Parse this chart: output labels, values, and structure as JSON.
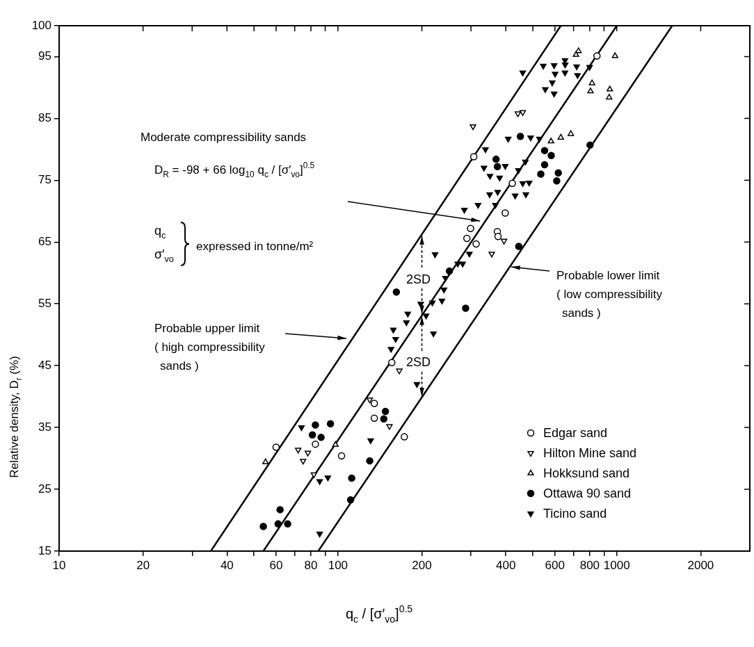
{
  "chart_data": {
    "type": "scatter",
    "xlabel": "q$_{c}$ / [σ′$_{vo}$]$^{0.5}$",
    "ylabel": "Relative density, D$_{r}$ (%)",
    "log": "x",
    "grid": false,
    "legend": "bottom right",
    "xlim": [
      10,
      3000
    ],
    "ylim": [
      15,
      100
    ],
    "xticks": [
      10,
      20,
      {
        "value": 30,
        "label": null
      },
      40,
      {
        "value": 50,
        "label": null
      },
      60,
      {
        "value": 70,
        "label": null
      },
      80,
      {
        "value": 90,
        "label": null
      },
      100,
      200,
      {
        "value": 300,
        "label": null
      },
      400,
      {
        "value": 500,
        "label": null
      },
      600,
      {
        "value": 700,
        "label": null
      },
      800,
      {
        "value": 900,
        "label": null
      },
      1000,
      2000
    ],
    "yticks": [
      15,
      25,
      35,
      45,
      55,
      65,
      75,
      85,
      95,
      100
    ],
    "annotations": [
      "Moderate compressibility sands",
      "D$_{R}$ = -98 + 66 log$_{10}$ q$_{c}$ / [σ′$_{vo}$]$^{0.5}$",
      "q$_{c}$",
      "σ′$_{vo}$",
      "expressed in tonne/m²",
      {
        "text": "2SD",
        "x": 200,
        "y": 66
      },
      {
        "text": "2SD",
        "x": 200,
        "y": 40
      },
      "Probable upper limit\n( high compressibility\nsands )",
      "Probable lower limit\n( low compressibility\nsands )"
    ],
    "series": [
      {
        "type": "line",
        "color": "#000000",
        "line_style": "solid",
        "x": [
          35,
          630
        ],
        "values": [
          15,
          100
        ]
      },
      {
        "type": "line",
        "color": "#000000",
        "line_style": "solid",
        "x": [
          54,
          1000
        ],
        "values": [
          15,
          100
        ]
      },
      {
        "type": "line",
        "color": "#000000",
        "line_style": "solid",
        "x": [
          85,
          1580
        ],
        "values": [
          15,
          100
        ]
      },
      {
        "name": "Edgar sand",
        "color": "#000000",
        "marker": "circle-open",
        "x": [
          60,
          83,
          103,
          135,
          135,
          173,
          156,
          290,
          299,
          313,
          373,
          375,
          398,
          422,
          307,
          849
        ],
        "values": [
          31.8,
          32.3,
          30.4,
          38.9,
          36.5,
          33.5,
          45.5,
          65.6,
          67.2,
          64.7,
          66.7,
          65.9,
          69.7,
          74.5,
          78.8,
          95.1
        ]
      },
      {
        "name": "Hilton Mine sand",
        "color": "#000000",
        "marker": "triangle-down-open",
        "x": [
          72,
          78,
          75,
          82,
          130,
          153,
          166,
          356,
          394,
          305,
          442,
          460
        ],
        "values": [
          31.4,
          30.9,
          29.6,
          27.4,
          39.5,
          35.2,
          44.2,
          63.1,
          65.2,
          83.7,
          85.8,
          86.0
        ]
      },
      {
        "name": "Hokksund sand",
        "color": "#000000",
        "marker": "triangle-open",
        "x": [
          55,
          98,
          581,
          630,
          684,
          729,
          714,
          986,
          815,
          805,
          944,
          939
        ],
        "values": [
          29.4,
          32.2,
          81.3,
          81.9,
          82.5,
          95.9,
          95.3,
          95.1,
          90.7,
          89.4,
          89.7,
          88.4
        ]
      },
      {
        "name": "Ottawa 90 sand",
        "color": "#000000",
        "marker": "circle",
        "x": [
          54,
          61,
          66,
          62,
          111,
          112,
          130,
          83,
          94,
          81,
          87,
          148,
          146,
          162,
          251,
          287,
          445,
          451,
          369,
          373,
          551,
          582,
          551,
          534,
          617,
          609,
          802
        ],
        "values": [
          19.0,
          19.4,
          19.4,
          21.7,
          23.3,
          26.8,
          29.6,
          35.4,
          35.6,
          33.8,
          33.4,
          37.6,
          36.4,
          56.9,
          60.3,
          54.3,
          64.3,
          82.1,
          78.4,
          77.2,
          79.8,
          79.0,
          77.5,
          76.0,
          76.2,
          74.9,
          80.7
        ]
      },
      {
        "name": "Ticino sand",
        "color": "#000000",
        "marker": "triangle-down",
        "x": [
          74,
          131,
          92,
          86,
          86,
          155,
          192,
          198,
          207,
          178,
          176,
          220,
          158,
          161,
          218,
          236,
          240,
          243,
          269,
          280,
          223,
          296,
          284,
          318,
          367,
          350,
          374,
          432,
          472,
          351,
          380,
          460,
          485,
          334,
          398,
          444,
          470,
          338,
          408,
          491,
          528,
          460,
          545,
          596,
          652,
          653,
          718,
          799,
          601,
          652,
          723,
          587,
          554,
          596
        ],
        "values": [
          35.0,
          32.9,
          26.9,
          26.3,
          17.8,
          47.7,
          42.0,
          55.0,
          53.1,
          53.4,
          52.0,
          50.2,
          50.8,
          49.3,
          55.2,
          55.5,
          57.3,
          59.2,
          61.5,
          61.5,
          63.0,
          63.1,
          70.2,
          71.0,
          71.0,
          72.7,
          73.1,
          72.5,
          72.7,
          75.7,
          75.4,
          74.5,
          74.6,
          77.0,
          77.3,
          76.6,
          78.0,
          80.0,
          81.7,
          81.9,
          81.7,
          92.4,
          93.5,
          93.6,
          94.4,
          93.7,
          93.4,
          93.3,
          92.2,
          92.4,
          92.0,
          90.8,
          89.7,
          89.0
        ]
      }
    ]
  }
}
